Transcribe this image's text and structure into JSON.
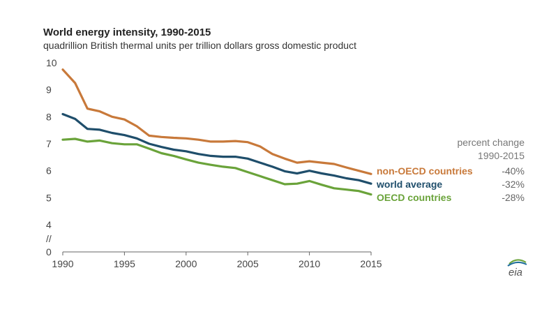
{
  "chart_data": {
    "type": "line",
    "title": "World energy intensity, 1990-2015",
    "subtitle": "quadrillion British thermal units per trillion dollars gross domestic product",
    "x": [
      1990,
      1991,
      1992,
      1993,
      1994,
      1995,
      1996,
      1997,
      1998,
      1999,
      2000,
      2001,
      2002,
      2003,
      2004,
      2005,
      2006,
      2007,
      2008,
      2009,
      2010,
      2011,
      2012,
      2013,
      2014,
      2015
    ],
    "xticks": [
      "1990",
      "1995",
      "2000",
      "2005",
      "2010",
      "2015"
    ],
    "yticks": [
      "0",
      "//",
      "4",
      "5",
      "6",
      "7",
      "8",
      "9",
      "10"
    ],
    "ylim": [
      0,
      10
    ],
    "axis_break": true,
    "series": [
      {
        "name": "non-OECD countries",
        "color": "#c8793a",
        "change": "-40%",
        "values": [
          9.75,
          9.25,
          8.3,
          8.2,
          8.0,
          7.9,
          7.65,
          7.3,
          7.25,
          7.22,
          7.2,
          7.15,
          7.08,
          7.08,
          7.1,
          7.06,
          6.9,
          6.62,
          6.45,
          6.3,
          6.35,
          6.3,
          6.25,
          6.12,
          6.0,
          5.88
        ]
      },
      {
        "name": "world average",
        "color": "#1f4e6b",
        "change": "-32%",
        "values": [
          8.1,
          7.92,
          7.55,
          7.52,
          7.4,
          7.32,
          7.2,
          7.0,
          6.88,
          6.78,
          6.72,
          6.62,
          6.55,
          6.52,
          6.52,
          6.45,
          6.3,
          6.15,
          5.98,
          5.9,
          6.0,
          5.9,
          5.82,
          5.72,
          5.65,
          5.52
        ]
      },
      {
        "name": "OECD countries",
        "color": "#6aa33a",
        "change": "-28%",
        "values": [
          7.15,
          7.18,
          7.08,
          7.12,
          7.02,
          6.98,
          6.98,
          6.82,
          6.65,
          6.55,
          6.42,
          6.3,
          6.22,
          6.15,
          6.1,
          5.95,
          5.8,
          5.65,
          5.5,
          5.52,
          5.62,
          5.48,
          5.35,
          5.3,
          5.25,
          5.12
        ]
      }
    ],
    "percent_change_header": [
      "percent change",
      "1990-2015"
    ],
    "legend": "right",
    "grid": false
  },
  "logo_text": "eia"
}
